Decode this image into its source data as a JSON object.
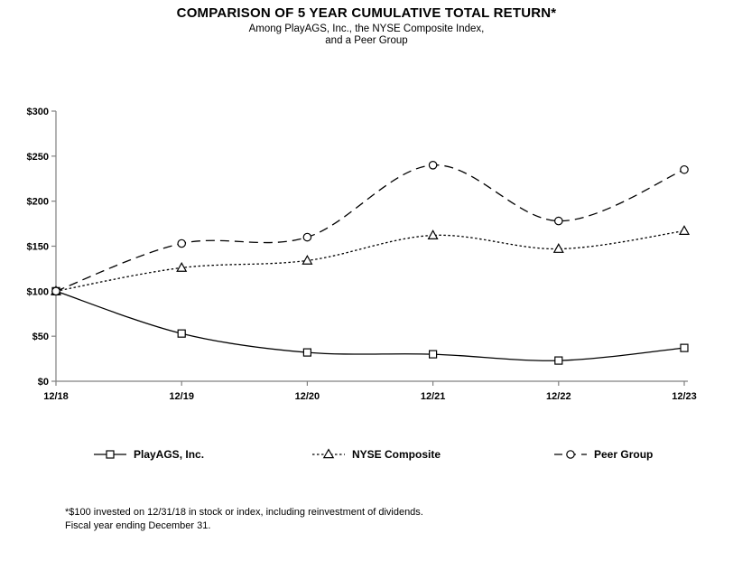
{
  "title": "COMPARISON OF 5 YEAR CUMULATIVE TOTAL RETURN*",
  "subtitle_line1": "Among PlayAGS, Inc., the NYSE Composite Index,",
  "subtitle_line2": "and a Peer Group",
  "footnote_line1": "*$100 invested on 12/31/18 in stock or index, including reinvestment of dividends.",
  "footnote_line2": "Fiscal year ending December 31.",
  "colors": {
    "background": "#ffffff",
    "axis": "#808080",
    "series_line": "#000000",
    "marker_fill": "#ffffff",
    "text": "#000000"
  },
  "chart_data": {
    "type": "line",
    "categories": [
      "12/18",
      "12/19",
      "12/20",
      "12/21",
      "12/22",
      "12/23"
    ],
    "series": [
      {
        "name": "PlayAGS, Inc.",
        "marker": "square",
        "line_style": "solid",
        "values": [
          100,
          53,
          32,
          30,
          23,
          37
        ]
      },
      {
        "name": "NYSE Composite",
        "marker": "triangle",
        "line_style": "dotted",
        "values": [
          100,
          126,
          134,
          162,
          147,
          167
        ]
      },
      {
        "name": "Peer Group",
        "marker": "circle",
        "line_style": "dashed",
        "values": [
          100,
          153,
          160,
          240,
          178,
          235
        ]
      }
    ],
    "ylim": [
      0,
      300
    ],
    "y_ticks": [
      0,
      50,
      100,
      150,
      200,
      250,
      300
    ],
    "y_tick_labels": [
      "$0",
      "$50",
      "$100",
      "$150",
      "$200",
      "$250",
      "$300"
    ],
    "xlabel": "",
    "ylabel": "",
    "grid": false,
    "legend_position": "bottom",
    "smoothed_lines": true
  }
}
